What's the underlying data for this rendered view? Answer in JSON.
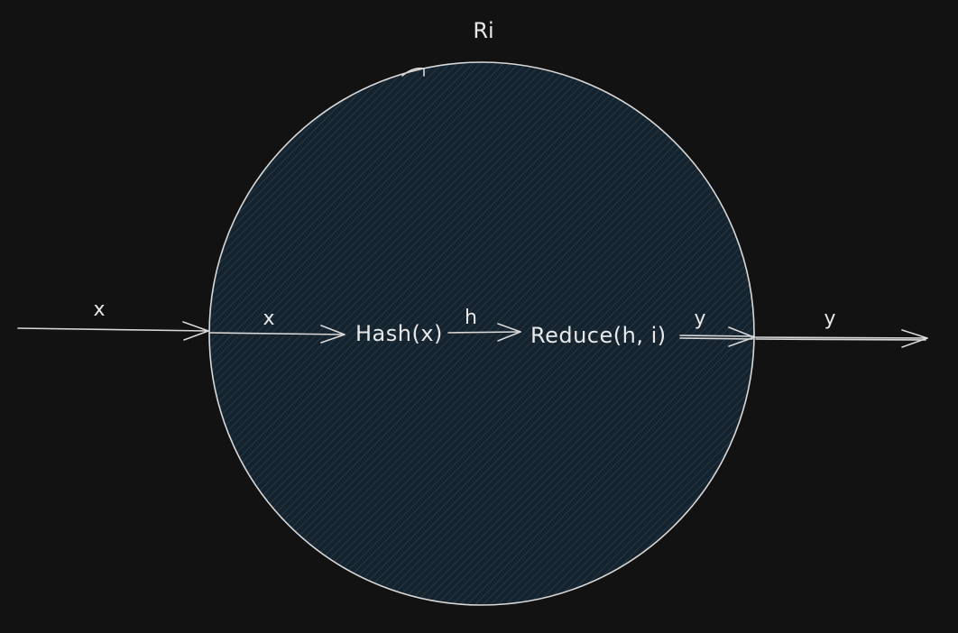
{
  "diagram": {
    "title": "Ri",
    "colors": {
      "background": "#121212",
      "circle_fill": "#16222c",
      "hatch": "#1e3a4e",
      "stroke": "#d8d8d8",
      "text": "#e8e8e8"
    },
    "input_label_outer": "x",
    "input_label_inner": "x",
    "hash_node": "Hash(x)",
    "hash_output_label": "h",
    "reduce_node": "Reduce(h, i)",
    "output_label_inner": "y",
    "output_label_outer": "y"
  }
}
